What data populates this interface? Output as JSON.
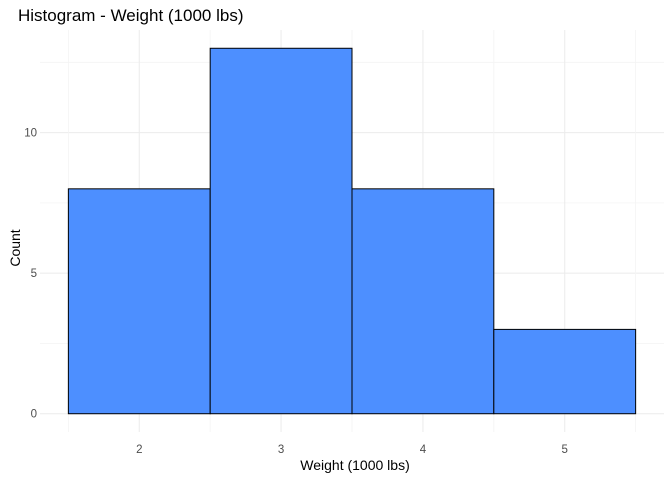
{
  "chart_data": {
    "type": "bar",
    "title": "Histogram - Weight (1000 lbs)",
    "xlabel": "Weight (1000 lbs)",
    "ylabel": "Count",
    "categories": [
      "2",
      "3",
      "4",
      "5"
    ],
    "x": [
      2,
      3,
      4,
      5
    ],
    "values": [
      8,
      13,
      8,
      3
    ],
    "bin_width": 1,
    "xlim": [
      1.5,
      5.5
    ],
    "ylim": [
      0,
      13
    ],
    "y_ticks": [
      0,
      5,
      10
    ],
    "x_ticks": [
      2,
      3,
      4,
      5
    ],
    "grid": true,
    "bar_color": "#4d8fff",
    "bar_outline": "#000000"
  }
}
